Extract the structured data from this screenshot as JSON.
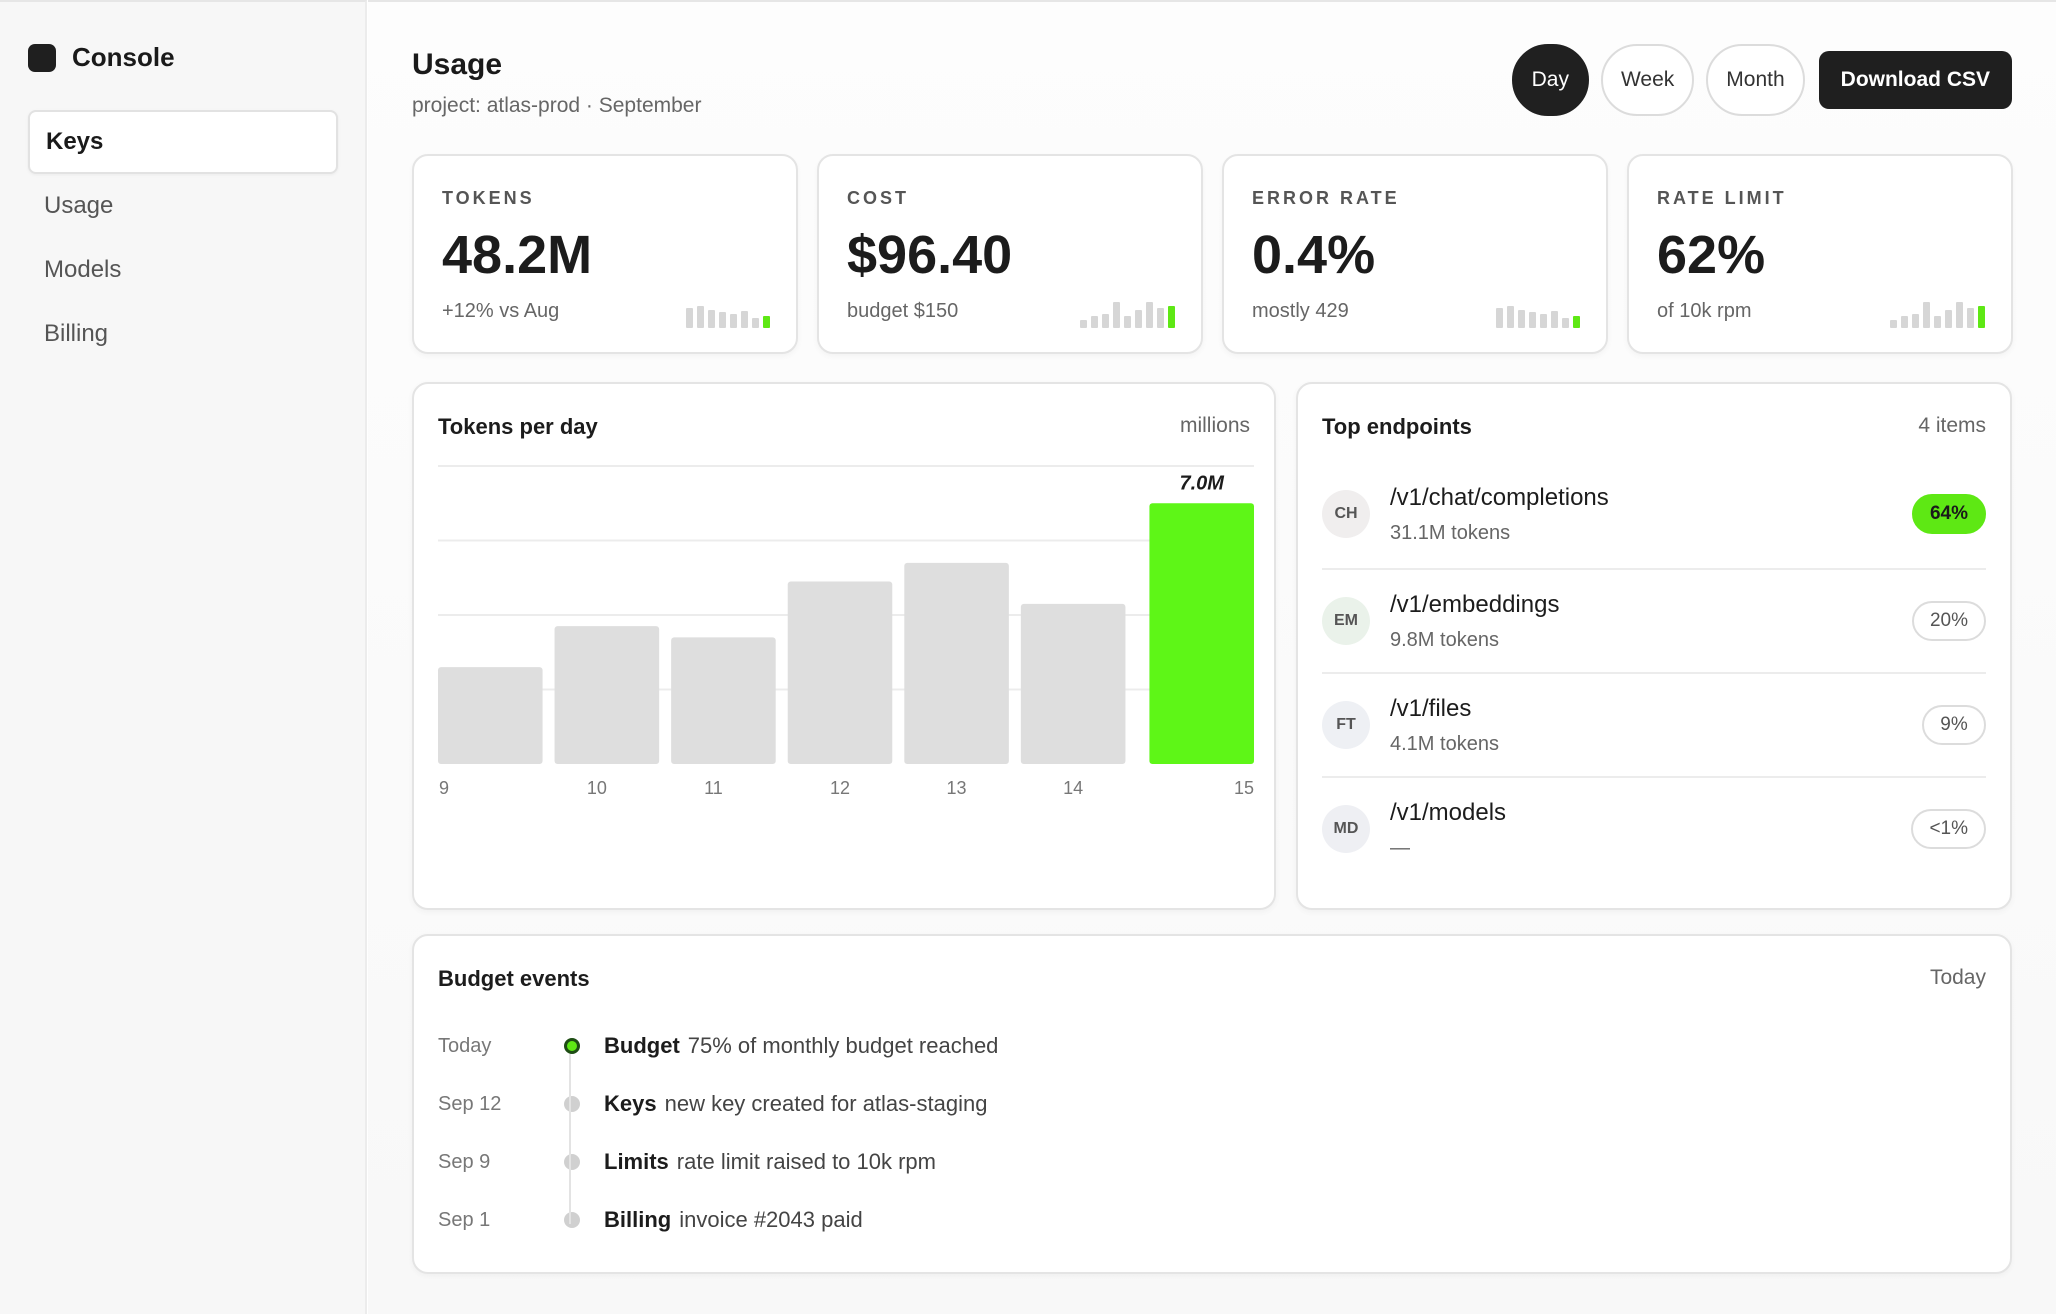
{
  "sidebar": {
    "brand": "Console",
    "items": [
      {
        "label": "Keys",
        "active": true
      },
      {
        "label": "Usage",
        "active": false
      },
      {
        "label": "Models",
        "active": false
      },
      {
        "label": "Billing",
        "active": false
      }
    ]
  },
  "header": {
    "title": "Usage",
    "subtitle": "project: atlas-prod · September",
    "ranges": [
      "Day",
      "Week",
      "Month"
    ],
    "active_range": "Day",
    "download_label": "Download CSV"
  },
  "stats": [
    {
      "label": "TOKENS",
      "value": "48.2M",
      "note": "+12% vs Aug"
    },
    {
      "label": "COST",
      "value": "$96.40",
      "note": "budget $150"
    },
    {
      "label": "ERROR RATE",
      "value": "0.4%",
      "note": "mostly 429"
    },
    {
      "label": "RATE LIMIT",
      "value": "62%",
      "note": "of 10k rpm"
    }
  ],
  "chart_panel": {
    "title": "Tokens per day",
    "unit_label": "millions"
  },
  "chart_data": {
    "type": "bar",
    "categories": [
      "9",
      "10",
      "11",
      "12",
      "13",
      "14",
      "15"
    ],
    "values": [
      2.6,
      3.7,
      3.4,
      4.9,
      5.4,
      4.3,
      7.0
    ],
    "highlight_index": 6,
    "highlight_label": "7.0M",
    "ylim": [
      0,
      8
    ],
    "grid": true,
    "colors": {
      "bar": "#dedede",
      "highlight": "#5ef617"
    }
  },
  "endpoints": {
    "title": "Top endpoints",
    "count_label": "4 items",
    "items": [
      {
        "initials": "CH",
        "path": "/v1/chat/completions",
        "detail": "31.1M tokens",
        "share": "64%",
        "hot": true
      },
      {
        "initials": "EM",
        "path": "/v1/embeddings",
        "detail": "9.8M tokens",
        "share": "20%",
        "hot": false
      },
      {
        "initials": "FT",
        "path": "/v1/files",
        "detail": "4.1M tokens",
        "share": "9%",
        "hot": false
      },
      {
        "initials": "MD",
        "path": "/v1/models",
        "detail": "—",
        "share": "<1%",
        "hot": false
      }
    ]
  },
  "events": {
    "title": "Budget events",
    "filter_label": "Today",
    "items": [
      {
        "date": "Today",
        "tag": "Budget",
        "text": "75% of monthly budget reached",
        "current": true
      },
      {
        "date": "Sep 12",
        "tag": "Keys",
        "text": "new key created for atlas-staging",
        "current": false
      },
      {
        "date": "Sep 9",
        "tag": "Limits",
        "text": "rate limit raised to 10k rpm",
        "current": false
      },
      {
        "date": "Sep 1",
        "tag": "Billing",
        "text": "invoice #2043 paid",
        "current": false
      }
    ]
  },
  "colors": {
    "accent": "#5ee814",
    "dark": "#1f1f1f"
  }
}
